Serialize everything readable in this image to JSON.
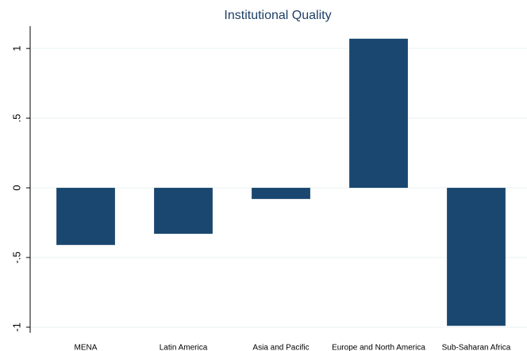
{
  "chart_data": {
    "type": "bar",
    "title": "Institutional Quality",
    "categories": [
      "MENA",
      "Latin America",
      "Asia and Pacific",
      "Europe and North America",
      "Sub-Saharan Africa"
    ],
    "values": [
      -0.41,
      -0.33,
      -0.08,
      1.07,
      -0.99
    ],
    "color": "#1a476f",
    "ylim": [
      -1.04,
      1.16
    ],
    "yticks": [
      -1,
      {
        "value": -0.5,
        "label": "-.5"
      },
      0,
      {
        "value": 0.5,
        "label": ".5"
      },
      1
    ],
    "grid": true
  }
}
